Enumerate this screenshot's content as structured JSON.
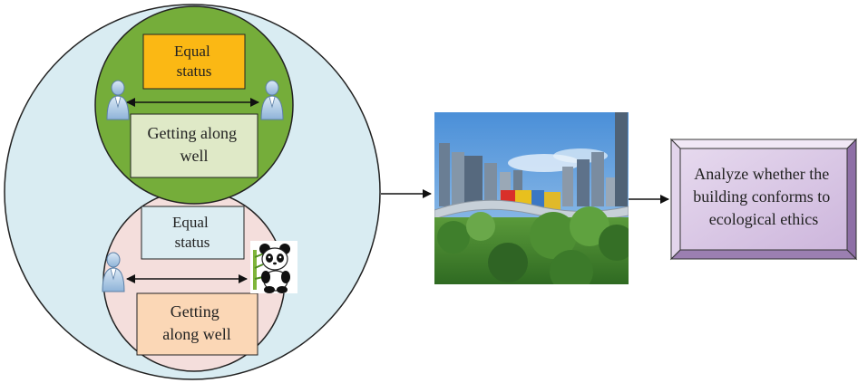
{
  "human_human": {
    "top_box_lines": [
      "Equal",
      "status"
    ],
    "bottom_box_lines": [
      "Getting along",
      "well"
    ]
  },
  "human_nature": {
    "top_box_lines": [
      "Equal",
      "status"
    ],
    "bottom_box_lines": [
      "Getting",
      "along well"
    ]
  },
  "result_box_lines": [
    "Analyze whether the",
    "building conforms to",
    "ecological ethics"
  ],
  "icons": {
    "person": "person-icon",
    "panda": "panda-icon",
    "photo": "city-building-photo"
  },
  "colors": {
    "outer_circle": "#d9ecf2",
    "top_circle": "#75ad3a",
    "bottom_circle": "#f4dedc",
    "equal_status_box_top": "#fbb814",
    "getting_along_box_top": "#dfe9c7",
    "equal_status_box_bottom": "#dcedf2",
    "getting_along_box_bottom": "#fbd7b6",
    "result_box": "#d8c6e2"
  }
}
